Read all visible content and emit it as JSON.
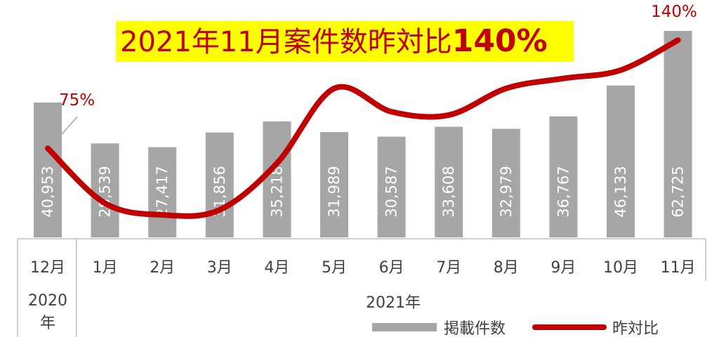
{
  "chart_data": {
    "type": "bar+line",
    "title_main": "2021年11月案件数昨対比",
    "title_highlight": "140%",
    "categories": [
      "12月",
      "1月",
      "2月",
      "3月",
      "4月",
      "5月",
      "6月",
      "7月",
      "8月",
      "9月",
      "10月",
      "11月"
    ],
    "year_groups": [
      {
        "label": "2020年",
        "label_line1": "2020",
        "label_line2": "年",
        "span": 1
      },
      {
        "label": "2021年",
        "span": 11
      }
    ],
    "series": [
      {
        "name": "掲載件数",
        "type": "bar",
        "color": "#a6a6a6",
        "values": [
          40953,
          28539,
          27417,
          31856,
          35218,
          31989,
          30587,
          33608,
          32979,
          36767,
          46133,
          62725
        ],
        "labels": [
          "40,953",
          "28,539",
          "27,417",
          "31,856",
          "35,218",
          "31,989",
          "30,587",
          "33,608",
          "32,979",
          "36,767",
          "46,133",
          "62,725"
        ]
      },
      {
        "name": "昨対比",
        "type": "line",
        "color": "#c00000",
        "unit": "%",
        "values": [
          75,
          42,
          35,
          38,
          66,
          111,
          97,
          95,
          111,
          117,
          122,
          140
        ],
        "point_labels": {
          "0": "75%",
          "11": "140%"
        }
      }
    ],
    "legend_position": "bottom-right",
    "grid": false
  }
}
